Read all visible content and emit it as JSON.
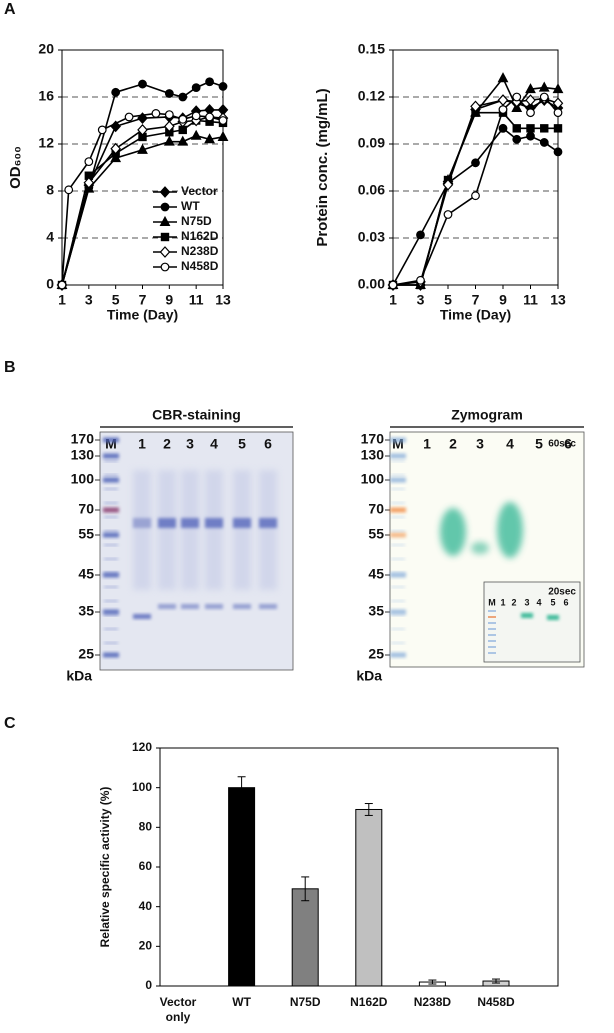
{
  "panel_labels": [
    "A",
    "B",
    "C"
  ],
  "chart_data": [
    {
      "type": "line",
      "xlabel": "Time (Day)",
      "ylabel": "OD₆₀₀",
      "x": [
        1,
        3,
        5,
        7,
        9,
        10,
        11,
        12,
        13
      ],
      "xlim": [
        1,
        13
      ],
      "xticks": [
        1,
        3,
        5,
        7,
        9,
        11,
        13
      ],
      "ylim": [
        0,
        20
      ],
      "yticks": [
        0,
        4,
        8,
        12,
        16,
        20
      ],
      "grid": true,
      "legend": "lower right",
      "series": [
        {
          "name": "Vector",
          "color": "#000000",
          "marker": "diamond",
          "filled": true,
          "values": [
            0,
            8.5,
            13.5,
            14.2,
            14.3,
            14.2,
            14.8,
            14.9,
            14.9
          ]
        },
        {
          "name": "WT",
          "color": "#000000",
          "marker": "circle",
          "filled": true,
          "values": [
            0,
            8.3,
            16.4,
            17.1,
            16.3,
            16.0,
            16.8,
            17.3,
            16.9
          ]
        },
        {
          "name": "N75D",
          "color": "#000000",
          "marker": "triangle",
          "filled": true,
          "values": [
            0,
            8.2,
            10.8,
            11.5,
            12.2,
            12.2,
            12.7,
            12.4,
            12.6
          ]
        },
        {
          "name": "N162D",
          "color": "#000000",
          "marker": "square",
          "filled": true,
          "values": [
            0,
            9.3,
            11.2,
            12.6,
            13.0,
            13.2,
            14.0,
            13.9,
            13.8
          ]
        },
        {
          "name": "N238D",
          "color": "#000000",
          "marker": "diamond",
          "filled": false,
          "values": [
            0,
            8.7,
            11.6,
            13.2,
            13.5,
            13.9,
            14.0,
            14.3,
            14.2
          ]
        },
        {
          "name": "N458D",
          "color": "#000000",
          "marker": "circle",
          "filled": false,
          "x": [
            1,
            1.5,
            3,
            4,
            6,
            8,
            9,
            10,
            11,
            12,
            13
          ],
          "values": [
            0,
            8.1,
            10.5,
            13.2,
            14.3,
            14.6,
            14.5,
            14.1,
            14.4,
            14.3,
            14.0
          ]
        }
      ]
    },
    {
      "type": "line",
      "xlabel": "Time (Day)",
      "ylabel": "Protein conc. (mg/mL)",
      "x": [
        1,
        3,
        5,
        7,
        9,
        10,
        11,
        12,
        13
      ],
      "xlim": [
        1,
        13
      ],
      "xticks": [
        1,
        3,
        5,
        7,
        9,
        11,
        13
      ],
      "ylim": [
        0,
        0.15
      ],
      "yticks": [
        {
          "value": 0,
          "label": "0.00"
        },
        {
          "value": 0.03,
          "label": "0.03"
        },
        {
          "value": 0.06,
          "label": "0.06"
        },
        {
          "value": 0.09,
          "label": "0.09"
        },
        {
          "value": 0.12,
          "label": "0.12"
        },
        {
          "value": 0.15,
          "label": "0.15"
        }
      ],
      "grid": true,
      "series": [
        {
          "name": "Vector",
          "color": "#000000",
          "marker": "diamond",
          "filled": true,
          "values": [
            0,
            0,
            0.066,
            0.112,
            0.118,
            0.116,
            0.113,
            0.118,
            0.113
          ]
        },
        {
          "name": "WT",
          "color": "#000000",
          "marker": "circle",
          "filled": true,
          "values": [
            0,
            0.032,
            0.065,
            0.078,
            0.1,
            0.093,
            0.095,
            0.091,
            0.085
          ]
        },
        {
          "name": "N75D",
          "color": "#000000",
          "marker": "triangle",
          "filled": true,
          "values": [
            0,
            0,
            0.067,
            0.11,
            0.132,
            0.113,
            0.125,
            0.126,
            0.125
          ]
        },
        {
          "name": "N162D",
          "color": "#000000",
          "marker": "square",
          "filled": true,
          "values": [
            0,
            0,
            0.067,
            0.11,
            0.11,
            0.1,
            0.1,
            0.1,
            0.1
          ]
        },
        {
          "name": "N238D",
          "color": "#000000",
          "marker": "diamond",
          "filled": false,
          "values": [
            0,
            0.002,
            0.064,
            0.114,
            0.118,
            0.117,
            0.118,
            0.119,
            0.116
          ]
        },
        {
          "name": "N458D",
          "color": "#000000",
          "marker": "circle",
          "filled": false,
          "values": [
            0,
            0.003,
            0.045,
            0.057,
            0.112,
            0.12,
            0.11,
            0.12,
            0.11
          ]
        }
      ]
    },
    {
      "type": "bar",
      "ylabel": "Relative specific activity (%)",
      "categories": [
        "Vector only",
        "WT",
        "N75D",
        "N162D",
        "N238D",
        "N458D"
      ],
      "values": [
        0,
        100,
        49,
        89,
        2,
        2.5
      ],
      "errors": [
        0,
        5.5,
        6,
        3,
        1,
        1
      ],
      "colors": [
        "#000000",
        "#000000",
        "#808080",
        "#c0c0c0",
        "#ffffff",
        "#d0d0d0"
      ],
      "ylim": [
        0,
        120
      ],
      "yticks": [
        0,
        20,
        40,
        60,
        80,
        100,
        120
      ]
    }
  ],
  "gels": [
    {
      "title": "CBR-staining",
      "lanes": [
        "M",
        "1",
        "2",
        "3",
        "4",
        "5",
        "6"
      ],
      "markers": [
        "170",
        "130",
        "100",
        "70",
        "55",
        "45",
        "35",
        "25"
      ],
      "unit": "kDa"
    },
    {
      "title": "Zymogram",
      "lanes": [
        "M",
        "1",
        "2",
        "3",
        "4",
        "5",
        "6"
      ],
      "markers": [
        "170",
        "130",
        "100",
        "70",
        "55",
        "45",
        "35",
        "25"
      ],
      "unit": "kDa",
      "time": "60sec",
      "inset": {
        "time": "20sec",
        "lanes": [
          "M",
          "1",
          "2",
          "3",
          "4",
          "5",
          "6"
        ]
      }
    }
  ]
}
